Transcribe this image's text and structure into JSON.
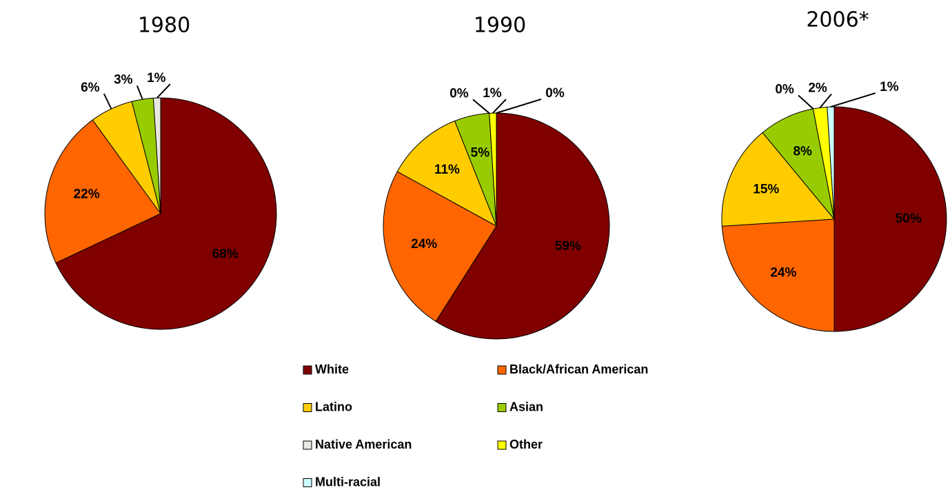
{
  "chart_data": [
    {
      "type": "pie",
      "title": "1980",
      "categories": [
        "White",
        "Black/African American",
        "Latino",
        "Asian",
        "Native American"
      ],
      "values": [
        68,
        22,
        6,
        3,
        1
      ],
      "value_labels": [
        "68%",
        "22%",
        "6%",
        "3%",
        "1%"
      ],
      "colors": [
        "#800000",
        "#ff6600",
        "#ffcc00",
        "#99cc00",
        "#e8e8e0"
      ]
    },
    {
      "type": "pie",
      "title": "1990",
      "categories": [
        "White",
        "Black/African American",
        "Latino",
        "Asian",
        "Native American",
        "Other",
        "Multi-racial"
      ],
      "values": [
        59,
        24,
        11,
        5,
        0,
        1,
        0
      ],
      "value_labels": [
        "59%",
        "24%",
        "11%",
        "5%",
        "0%",
        "1%",
        "0%"
      ],
      "colors": [
        "#800000",
        "#ff6600",
        "#ffcc00",
        "#99cc00",
        "#e8e8e0",
        "#ffff00",
        "#ccffff"
      ]
    },
    {
      "type": "pie",
      "title": "2006*",
      "categories": [
        "White",
        "Black/African American",
        "Latino",
        "Asian",
        "Native American",
        "Other",
        "Multi-racial"
      ],
      "values": [
        50,
        24,
        15,
        8,
        0,
        2,
        1
      ],
      "value_labels": [
        "50%",
        "24%",
        "15%",
        "8%",
        "0%",
        "2%",
        "1%"
      ],
      "colors": [
        "#800000",
        "#ff6600",
        "#ffcc00",
        "#99cc00",
        "#e8e8e0",
        "#ffff00",
        "#ccffff"
      ]
    }
  ]
}
